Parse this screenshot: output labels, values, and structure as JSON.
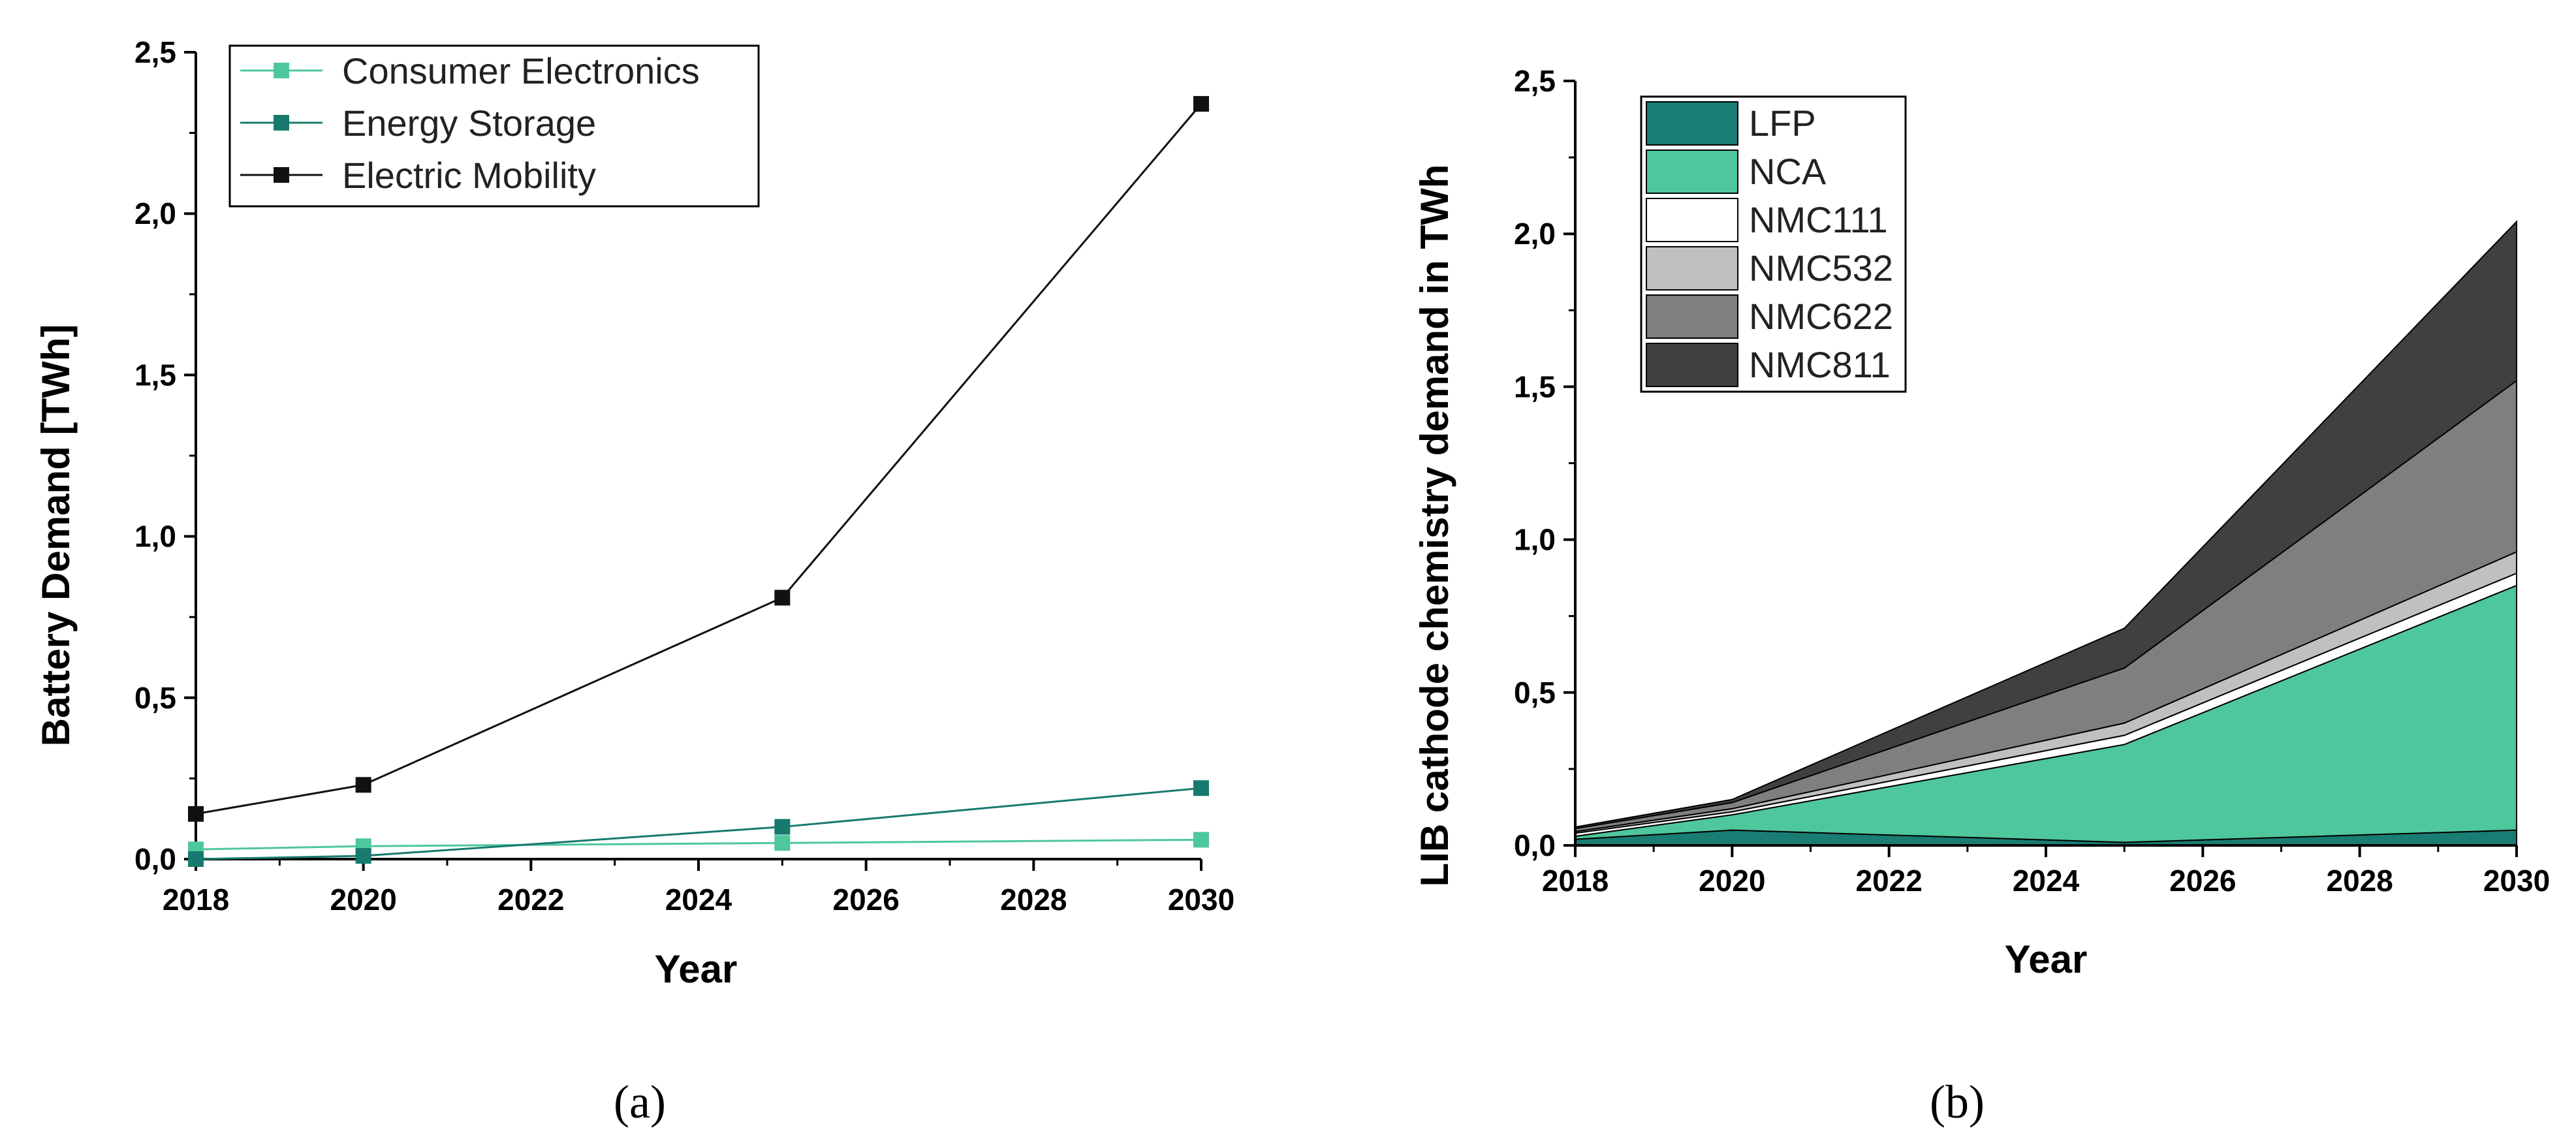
{
  "chart_data": [
    {
      "type": "line",
      "caption": "(a)",
      "xlabel": "Year",
      "ylabel": "Battery Demand [TWh]",
      "xlim": [
        2018,
        2030
      ],
      "ylim": [
        0,
        2.5
      ],
      "xticks": [
        "2018",
        "2020",
        "2022",
        "2024",
        "2026",
        "2028",
        "2030"
      ],
      "yticks": [
        "0,0",
        "0,5",
        "1,0",
        "1,5",
        "2,0",
        "2,5"
      ],
      "legend_position": "top-left",
      "x": [
        2018,
        2020,
        2025,
        2030
      ],
      "series": [
        {
          "name": "Consumer Electronics",
          "color": "#4ec79c",
          "values": [
            0.03,
            0.04,
            0.05,
            0.06
          ]
        },
        {
          "name": "Energy Storage",
          "color": "#187a6e",
          "values": [
            0.0,
            0.01,
            0.1,
            0.22
          ]
        },
        {
          "name": "Electric Mobility",
          "color": "#111111",
          "values": [
            0.14,
            0.23,
            0.81,
            2.34
          ]
        }
      ]
    },
    {
      "type": "area",
      "stacked": true,
      "caption": "(b)",
      "xlabel": "Year",
      "ylabel": "LIB cathode chemistry demand in TWh",
      "xlim": [
        2018,
        2030
      ],
      "ylim": [
        0,
        2.5
      ],
      "xticks": [
        "2018",
        "2020",
        "2022",
        "2024",
        "2026",
        "2028",
        "2030"
      ],
      "yticks": [
        "0,0",
        "0,5",
        "1,0",
        "1,5",
        "2,0",
        "2,5"
      ],
      "legend_position": "top-left",
      "x": [
        2018,
        2020,
        2025,
        2030
      ],
      "series": [
        {
          "name": "LFP",
          "color": "#197d73",
          "values": [
            0.02,
            0.05,
            0.01,
            0.05
          ]
        },
        {
          "name": "NCA",
          "color": "#4ec79c",
          "values": [
            0.01,
            0.05,
            0.32,
            0.8
          ]
        },
        {
          "name": "NMC111",
          "color": "#ffffff",
          "values": [
            0.01,
            0.01,
            0.03,
            0.04
          ]
        },
        {
          "name": "NMC532",
          "color": "#c0c0c0",
          "values": [
            0.005,
            0.01,
            0.04,
            0.07
          ]
        },
        {
          "name": "NMC622",
          "color": "#7f7f7f",
          "values": [
            0.01,
            0.02,
            0.18,
            0.56
          ]
        },
        {
          "name": "NMC811",
          "color": "#404040",
          "values": [
            0.005,
            0.01,
            0.13,
            0.52
          ]
        }
      ]
    }
  ]
}
